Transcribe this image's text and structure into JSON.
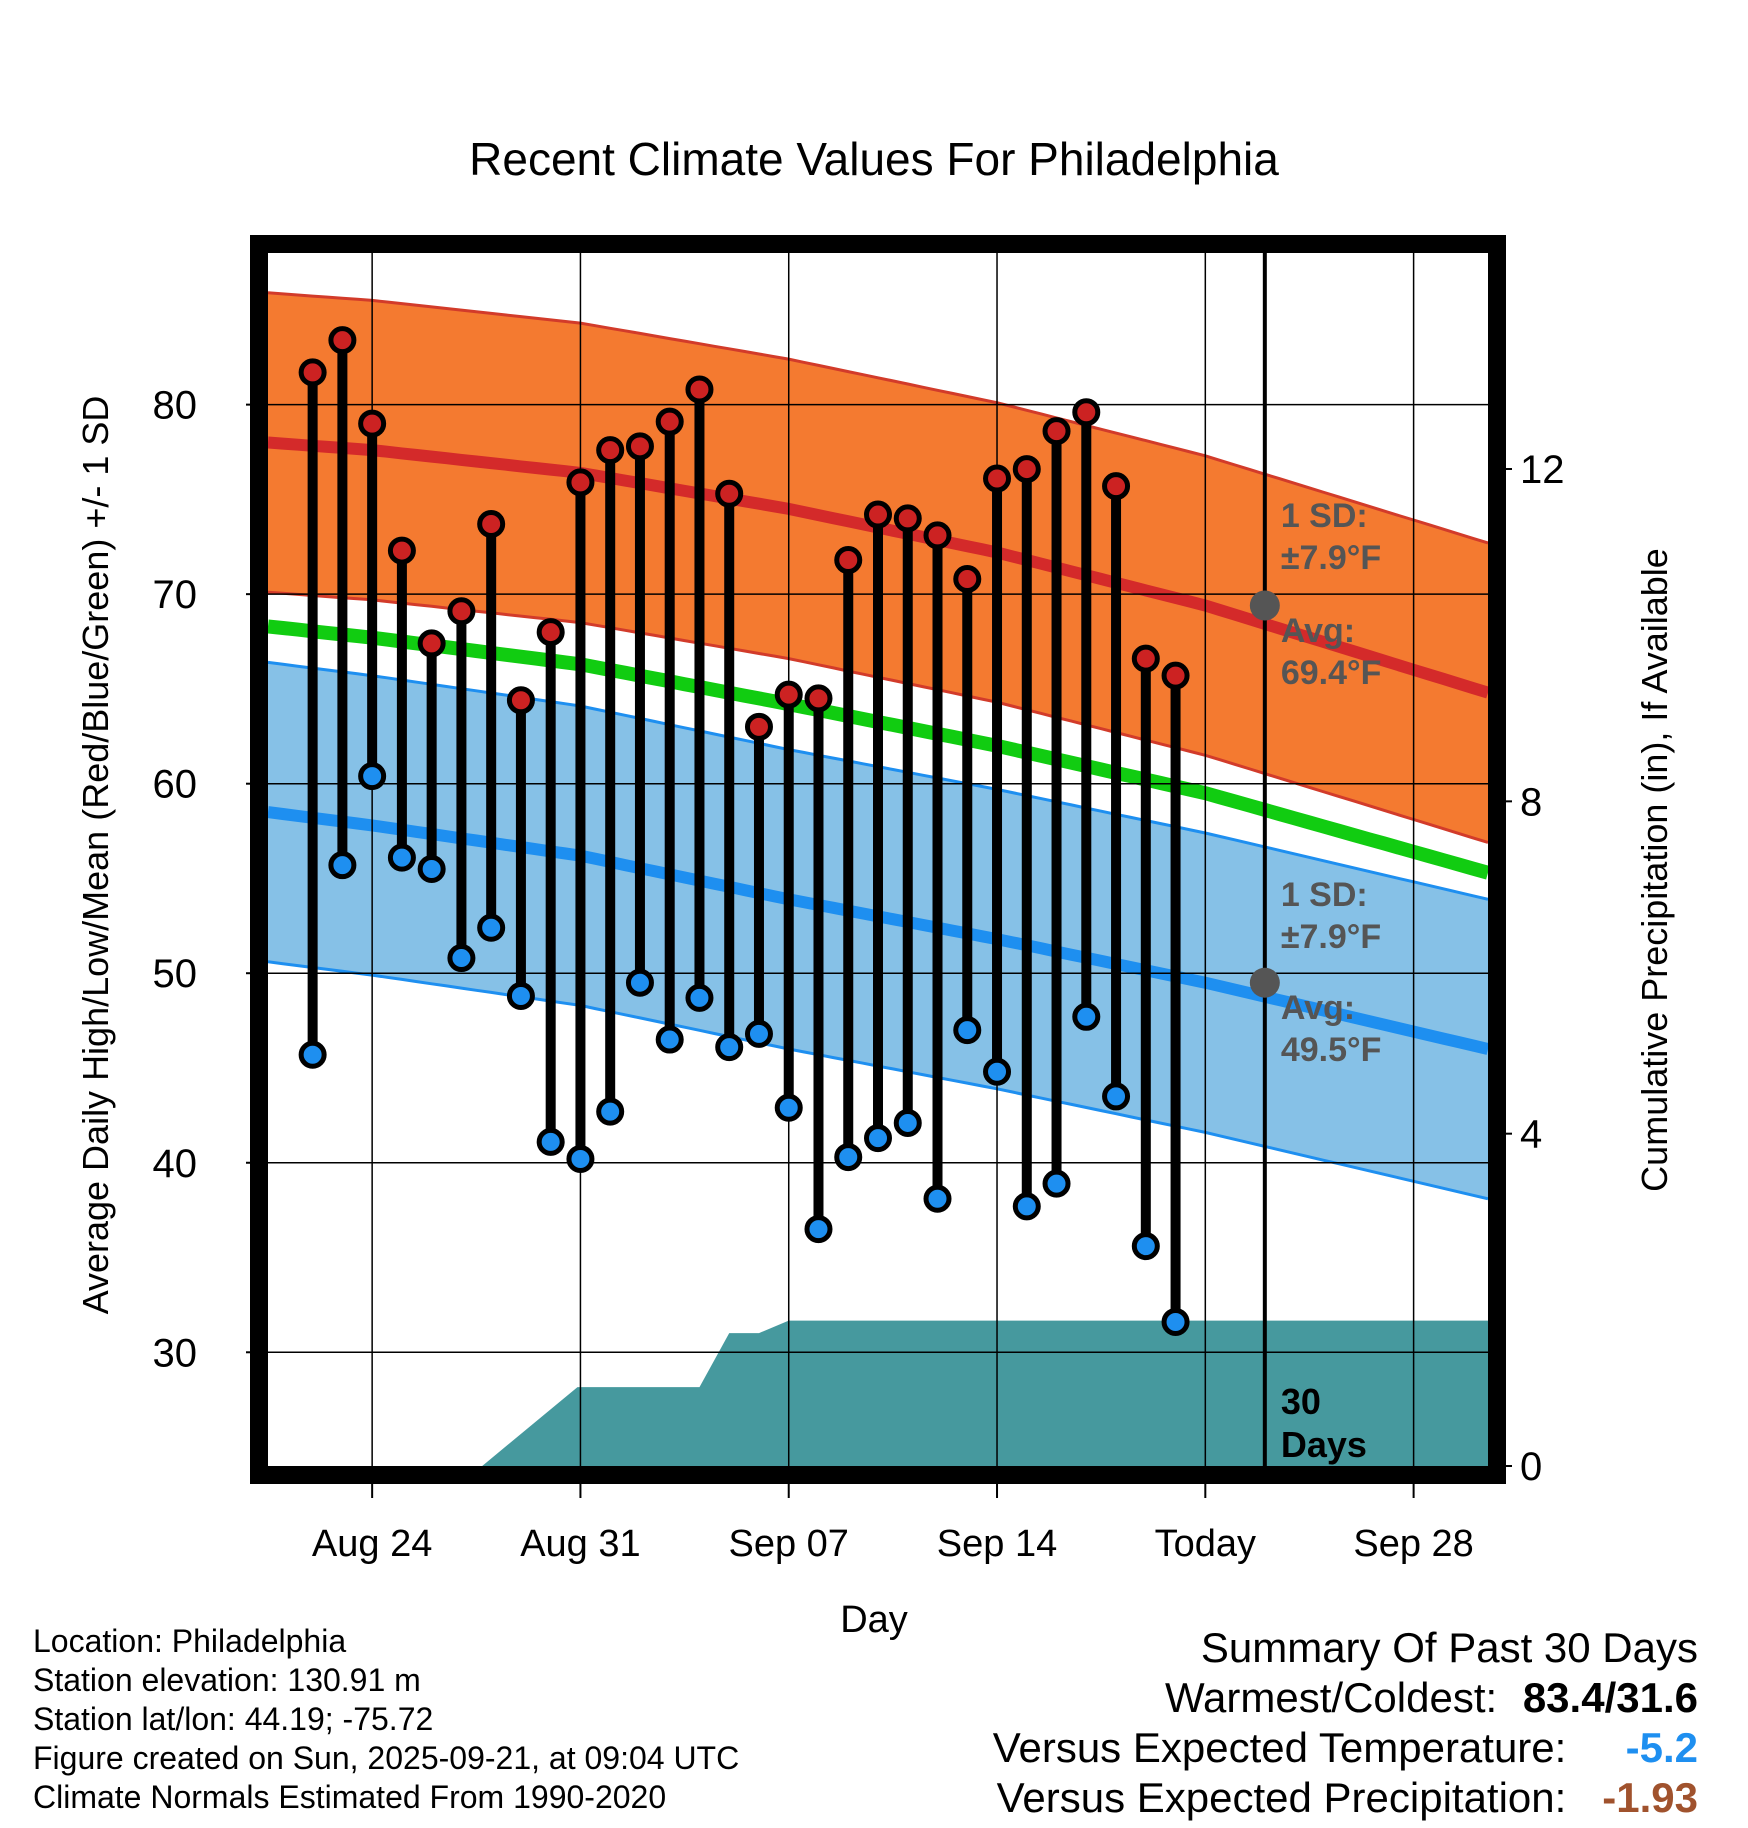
{
  "chart_data": {
    "type": "line",
    "title": "Recent Climate Values For Philadelphia",
    "xlabel": "Day",
    "ylabel": "Average Daily High/Low/Mean (Red/Blue/Green) +/- 1 SD",
    "y2label": "Cumulative Precipitation (in), If Available",
    "ylim": [
      24,
      88
    ],
    "y2lim": [
      0,
      14.6
    ],
    "xlim": [
      -3.5,
      37.5
    ],
    "today_index": 30,
    "x_ticks": [
      {
        "day": 0,
        "label": "Aug 24"
      },
      {
        "day": 7,
        "label": "Aug 31"
      },
      {
        "day": 14,
        "label": "Sep 07"
      },
      {
        "day": 21,
        "label": "Sep 14"
      },
      {
        "day": 28,
        "label": "Today"
      },
      {
        "day": 35,
        "label": "Sep 28"
      }
    ],
    "y_ticks": [
      30,
      40,
      50,
      60,
      70,
      80
    ],
    "y2_ticks": [
      0,
      4,
      8,
      12
    ],
    "normals": {
      "days": [
        -3.5,
        0,
        7,
        14,
        21,
        28,
        37.5
      ],
      "high_mean": [
        78.0,
        77.6,
        76.4,
        74.5,
        72.2,
        69.4,
        64.8
      ],
      "high_sd": 7.9,
      "low_mean": [
        58.5,
        57.8,
        56.2,
        53.9,
        51.8,
        49.5,
        46.0
      ],
      "low_sd": 7.9,
      "mean": [
        68.3,
        67.7,
        66.3,
        64.2,
        62.0,
        59.5,
        55.3
      ]
    },
    "series": [
      {
        "name": "High",
        "days": [
          -2,
          -1,
          0,
          1,
          2,
          3,
          4,
          5,
          6,
          7,
          8,
          9,
          10,
          11,
          12,
          13,
          14,
          15,
          16,
          17,
          18,
          19,
          20,
          21,
          22,
          23,
          24,
          25,
          26,
          27
        ],
        "values": [
          81.7,
          83.4,
          79.0,
          72.3,
          67.4,
          69.1,
          73.7,
          64.4,
          68.0,
          75.9,
          77.6,
          77.8,
          79.1,
          80.8,
          75.3,
          63.0,
          64.7,
          64.5,
          71.8,
          74.2,
          74.0,
          73.1,
          70.8,
          76.1,
          76.6,
          78.6,
          79.6,
          75.7,
          66.6,
          65.7
        ]
      },
      {
        "name": "Low",
        "days": [
          -2,
          -1,
          0,
          1,
          2,
          3,
          4,
          5,
          6,
          7,
          8,
          9,
          10,
          11,
          12,
          13,
          14,
          15,
          16,
          17,
          18,
          19,
          20,
          21,
          22,
          23,
          24,
          25,
          26,
          27
        ],
        "values": [
          45.7,
          55.7,
          60.4,
          56.1,
          55.5,
          50.8,
          52.4,
          48.8,
          41.1,
          40.2,
          42.7,
          49.5,
          46.5,
          48.7,
          46.1,
          46.8,
          42.9,
          36.5,
          40.3,
          41.3,
          42.1,
          38.1,
          47.0,
          44.8,
          37.7,
          38.9,
          47.7,
          43.5,
          35.6,
          31.6
        ]
      },
      {
        "name": "Cumulative Precipitation",
        "days": [
          -3.5,
          0.8,
          2.6,
          3.7,
          6.9,
          10.0,
          11.0,
          12.0,
          13.0,
          14.0,
          15.0,
          28.0,
          37.5
        ],
        "values": [
          0,
          0,
          0,
          0,
          0.95,
          0.95,
          0.95,
          1.6,
          1.6,
          1.75,
          1.75,
          1.75,
          1.75
        ]
      }
    ],
    "annotations": {
      "high_sd_label": "1 SD:",
      "high_sd_value": "±7.9°F",
      "high_avg_label": "Avg:",
      "high_avg_value": "69.4°F",
      "low_sd_label": "1 SD:",
      "low_sd_value": "±7.9°F",
      "low_avg_label": "Avg:",
      "low_avg_value": "49.5°F",
      "days_count": "30",
      "days_word": "Days"
    },
    "colors": {
      "high_band": "#f47a30",
      "high_edge": "#d23b2a",
      "high_mean": "#d42a2a",
      "low_band": "#86c1e7",
      "low_edge": "#1e8ff0",
      "low_mean": "#1e8ff0",
      "mean_line": "#11cc11",
      "high_dot": "#cc2222",
      "low_dot": "#1e8ff0",
      "precip": "#46999e",
      "marker_gray": "#555555"
    }
  },
  "info": {
    "location": "Location: Philadelphia",
    "elevation": "Station elevation: 130.91 m",
    "latlon": "Station lat/lon: 44.19; -75.72",
    "created": "Figure created on Sun, 2025-09-21, at 09:04 UTC",
    "normals": "Climate Normals Estimated From 1990-2020"
  },
  "summary": {
    "title": "Summary Of Past 30 Days",
    "warm_cold_label": "Warmest/Coldest:",
    "warm_cold_value": "83.4/31.6",
    "temp_label": "Versus Expected Temperature:",
    "temp_value": "-5.2",
    "precip_label": "Versus Expected Precipitation:",
    "precip_value": "-1.93",
    "temp_color": "#1e8ff0",
    "precip_color": "#a0522d"
  }
}
